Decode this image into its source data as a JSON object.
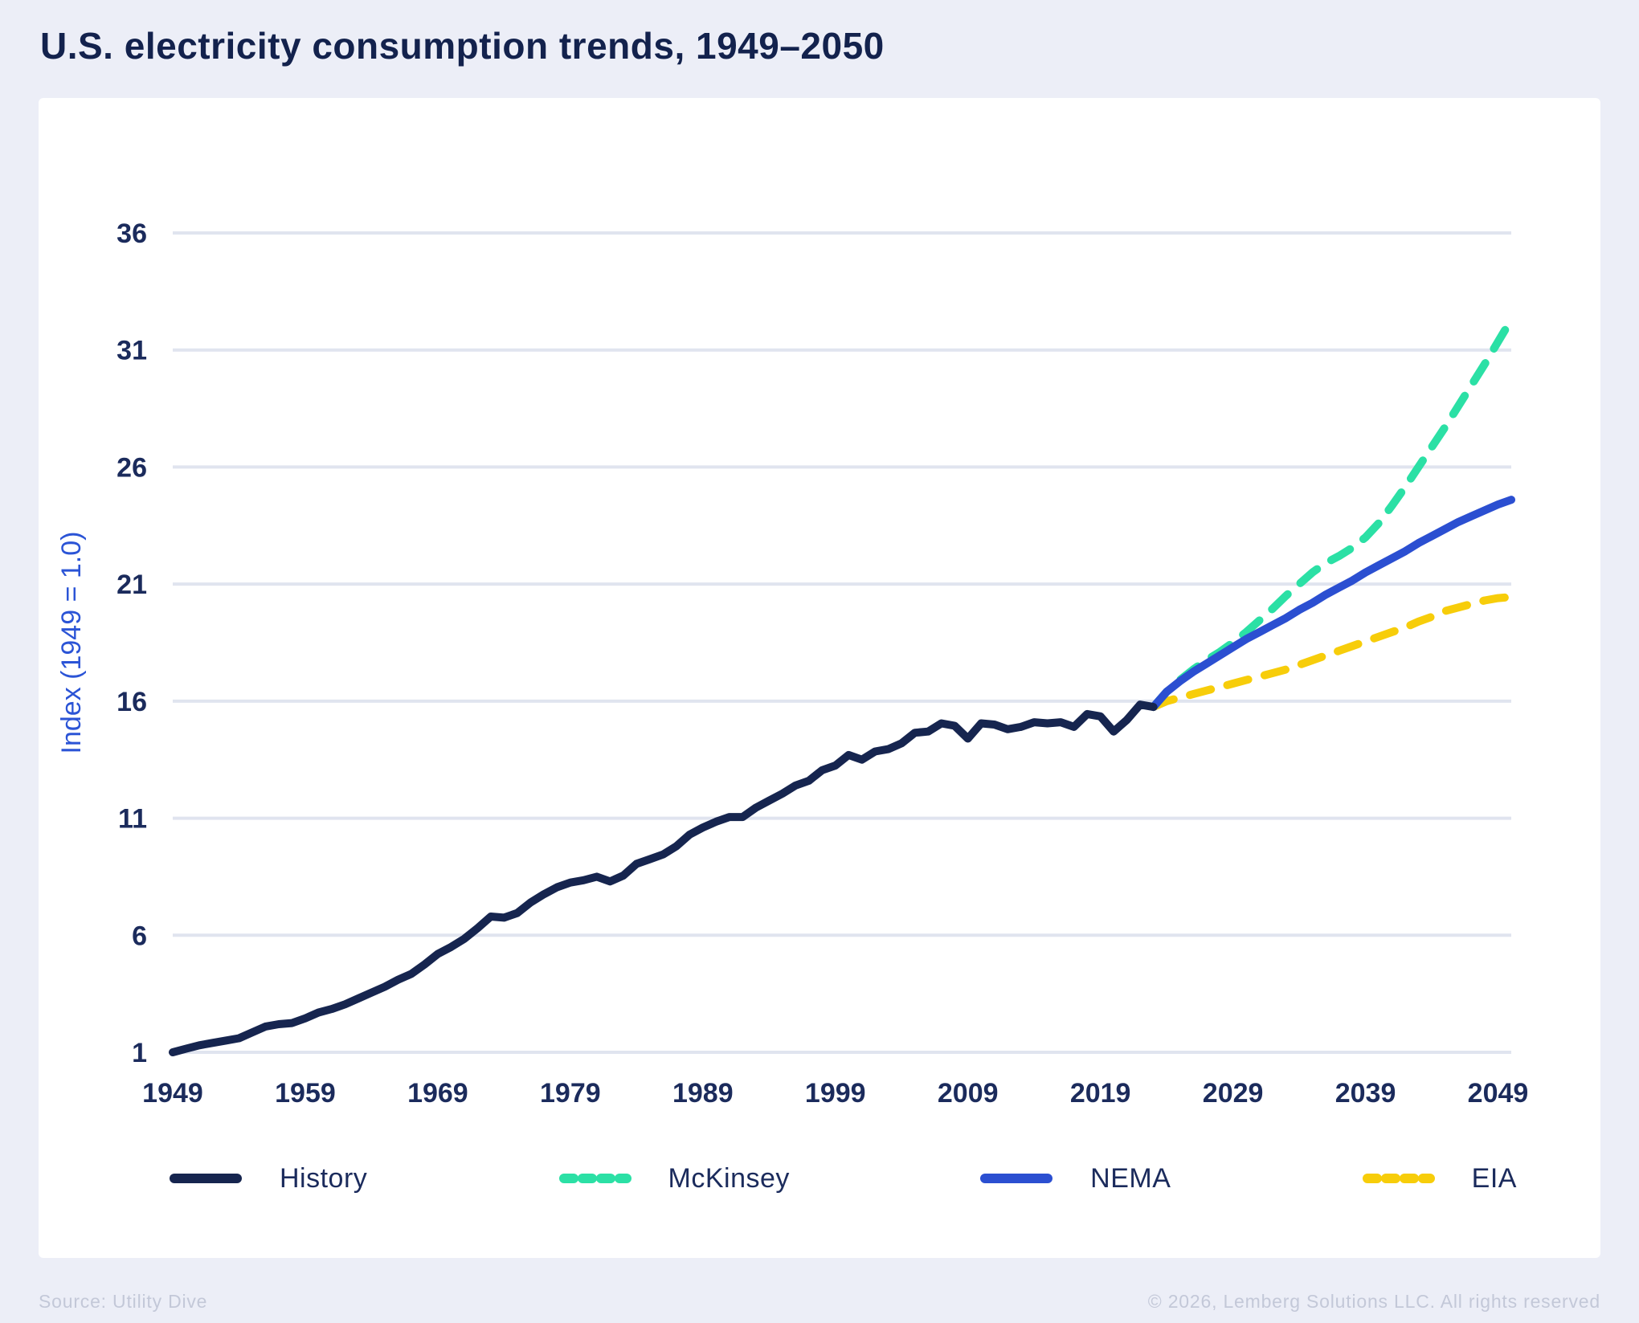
{
  "header": {
    "title": "U.S. electricity consumption trends, 1949–2050"
  },
  "footer": {
    "source": "Source: Utility Dive",
    "copyright": "© 2026, Lemberg Solutions LLC. All rights reserved"
  },
  "colors": {
    "page_background": "#ECEEF7",
    "card_background": "#FFFFFF",
    "gridline": "#E0E4EF",
    "title_text": "#13224D",
    "tick_text": "#1B2B5C",
    "axis_label_text": "#2B54D6",
    "footer_text": "#C3C8D8"
  },
  "chart_data": {
    "type": "line",
    "title": "U.S. electricity consumption trends, 1949–2050",
    "xlabel": "",
    "ylabel": "Index (1949 = 1.0)",
    "xlim": [
      1949,
      2050
    ],
    "ylim": [
      1,
      36
    ],
    "x_ticks": [
      "1949",
      "1959",
      "1969",
      "1979",
      "1989",
      "1999",
      "2009",
      "2019",
      "2029",
      "2039",
      "2049"
    ],
    "y_ticks": [
      1,
      6,
      11,
      16,
      21,
      26,
      31,
      36
    ],
    "grid": "horizontal",
    "legend_position": "bottom",
    "series": [
      {
        "name": "History",
        "color": "#16254F",
        "dashed": false,
        "z": 4,
        "points": [
          [
            1949,
            1.0
          ],
          [
            1950,
            1.15
          ],
          [
            1951,
            1.3
          ],
          [
            1952,
            1.4
          ],
          [
            1953,
            1.5
          ],
          [
            1954,
            1.6
          ],
          [
            1955,
            1.85
          ],
          [
            1956,
            2.1
          ],
          [
            1957,
            2.2
          ],
          [
            1958,
            2.25
          ],
          [
            1959,
            2.45
          ],
          [
            1960,
            2.7
          ],
          [
            1961,
            2.85
          ],
          [
            1962,
            3.05
          ],
          [
            1963,
            3.3
          ],
          [
            1964,
            3.55
          ],
          [
            1965,
            3.8
          ],
          [
            1966,
            4.1
          ],
          [
            1967,
            4.35
          ],
          [
            1968,
            4.75
          ],
          [
            1969,
            5.2
          ],
          [
            1970,
            5.5
          ],
          [
            1971,
            5.85
          ],
          [
            1972,
            6.3
          ],
          [
            1973,
            6.8
          ],
          [
            1974,
            6.75
          ],
          [
            1975,
            6.95
          ],
          [
            1976,
            7.4
          ],
          [
            1977,
            7.75
          ],
          [
            1978,
            8.05
          ],
          [
            1979,
            8.25
          ],
          [
            1980,
            8.35
          ],
          [
            1981,
            8.5
          ],
          [
            1982,
            8.3
          ],
          [
            1983,
            8.55
          ],
          [
            1984,
            9.05
          ],
          [
            1985,
            9.25
          ],
          [
            1986,
            9.45
          ],
          [
            1987,
            9.8
          ],
          [
            1988,
            10.3
          ],
          [
            1989,
            10.6
          ],
          [
            1990,
            10.85
          ],
          [
            1991,
            11.05
          ],
          [
            1992,
            11.05
          ],
          [
            1993,
            11.45
          ],
          [
            1994,
            11.75
          ],
          [
            1995,
            12.05
          ],
          [
            1996,
            12.4
          ],
          [
            1997,
            12.6
          ],
          [
            1998,
            13.05
          ],
          [
            1999,
            13.25
          ],
          [
            2000,
            13.7
          ],
          [
            2001,
            13.5
          ],
          [
            2002,
            13.85
          ],
          [
            2003,
            13.95
          ],
          [
            2004,
            14.2
          ],
          [
            2005,
            14.65
          ],
          [
            2006,
            14.7
          ],
          [
            2007,
            15.05
          ],
          [
            2008,
            14.95
          ],
          [
            2009,
            14.4
          ],
          [
            2010,
            15.05
          ],
          [
            2011,
            15.0
          ],
          [
            2012,
            14.8
          ],
          [
            2013,
            14.9
          ],
          [
            2014,
            15.1
          ],
          [
            2015,
            15.05
          ],
          [
            2016,
            15.1
          ],
          [
            2017,
            14.9
          ],
          [
            2018,
            15.45
          ],
          [
            2019,
            15.35
          ],
          [
            2020,
            14.7
          ],
          [
            2021,
            15.2
          ],
          [
            2022,
            15.85
          ],
          [
            2023,
            15.75
          ]
        ]
      },
      {
        "name": "McKinsey",
        "color": "#2BE0A5",
        "dashed": true,
        "z": 2,
        "points": [
          [
            2023,
            15.75
          ],
          [
            2024,
            16.4
          ],
          [
            2025,
            16.9
          ],
          [
            2026,
            17.35
          ],
          [
            2027,
            17.75
          ],
          [
            2028,
            18.1
          ],
          [
            2029,
            18.5
          ],
          [
            2030,
            18.95
          ],
          [
            2031,
            19.45
          ],
          [
            2032,
            19.95
          ],
          [
            2033,
            20.5
          ],
          [
            2034,
            21.0
          ],
          [
            2035,
            21.5
          ],
          [
            2036,
            21.9
          ],
          [
            2037,
            22.2
          ],
          [
            2038,
            22.55
          ],
          [
            2039,
            23.0
          ],
          [
            2040,
            23.6
          ],
          [
            2041,
            24.35
          ],
          [
            2042,
            25.15
          ],
          [
            2043,
            26.0
          ],
          [
            2044,
            26.85
          ],
          [
            2045,
            27.7
          ],
          [
            2046,
            28.6
          ],
          [
            2047,
            29.5
          ],
          [
            2048,
            30.4
          ],
          [
            2049,
            31.35
          ],
          [
            2050,
            32.3
          ]
        ]
      },
      {
        "name": "NEMA",
        "color": "#2B4FD1",
        "dashed": false,
        "z": 3,
        "points": [
          [
            2023,
            15.75
          ],
          [
            2024,
            16.4
          ],
          [
            2025,
            16.85
          ],
          [
            2026,
            17.25
          ],
          [
            2027,
            17.6
          ],
          [
            2028,
            17.95
          ],
          [
            2029,
            18.3
          ],
          [
            2030,
            18.65
          ],
          [
            2031,
            18.95
          ],
          [
            2032,
            19.25
          ],
          [
            2033,
            19.55
          ],
          [
            2034,
            19.9
          ],
          [
            2035,
            20.2
          ],
          [
            2036,
            20.55
          ],
          [
            2037,
            20.85
          ],
          [
            2038,
            21.15
          ],
          [
            2039,
            21.5
          ],
          [
            2040,
            21.8
          ],
          [
            2041,
            22.1
          ],
          [
            2042,
            22.4
          ],
          [
            2043,
            22.75
          ],
          [
            2044,
            23.05
          ],
          [
            2045,
            23.35
          ],
          [
            2046,
            23.65
          ],
          [
            2047,
            23.9
          ],
          [
            2048,
            24.15
          ],
          [
            2049,
            24.4
          ],
          [
            2050,
            24.6
          ]
        ]
      },
      {
        "name": "EIA",
        "color": "#F7CD0A",
        "dashed": true,
        "z": 1,
        "points": [
          [
            2023,
            15.75
          ],
          [
            2024,
            16.0
          ],
          [
            2025,
            16.15
          ],
          [
            2026,
            16.3
          ],
          [
            2027,
            16.45
          ],
          [
            2028,
            16.6
          ],
          [
            2029,
            16.75
          ],
          [
            2030,
            16.9
          ],
          [
            2031,
            17.05
          ],
          [
            2032,
            17.2
          ],
          [
            2033,
            17.35
          ],
          [
            2034,
            17.55
          ],
          [
            2035,
            17.75
          ],
          [
            2036,
            17.95
          ],
          [
            2037,
            18.15
          ],
          [
            2038,
            18.35
          ],
          [
            2039,
            18.55
          ],
          [
            2040,
            18.75
          ],
          [
            2041,
            18.95
          ],
          [
            2042,
            19.15
          ],
          [
            2043,
            19.4
          ],
          [
            2044,
            19.6
          ],
          [
            2045,
            19.85
          ],
          [
            2046,
            20.0
          ],
          [
            2047,
            20.15
          ],
          [
            2048,
            20.3
          ],
          [
            2049,
            20.4
          ],
          [
            2050,
            20.45
          ]
        ]
      }
    ]
  }
}
